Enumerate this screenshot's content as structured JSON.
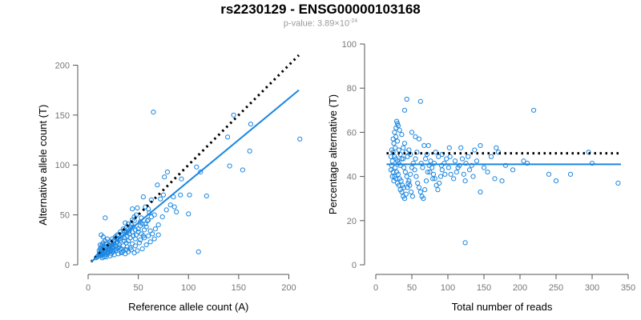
{
  "title": "rs2230129 - ENSG00000103168",
  "subtitle": {
    "prefix": "p-value: 3.89×10",
    "exponent": "-24"
  },
  "colors": {
    "points": "#1a86e0",
    "fit": "#1a86e0",
    "reference": "#000000",
    "axis": "#555555"
  },
  "chart_data": [
    {
      "type": "scatter",
      "xlabel": "Reference allele count (A)",
      "ylabel": "Alternative allele count (T)",
      "xlim": [
        0,
        210
      ],
      "ylim": [
        0,
        210
      ],
      "xticks": [
        0,
        50,
        100,
        150,
        200
      ],
      "yticks": [
        0,
        50,
        100,
        150,
        200
      ],
      "grid": false,
      "fit_line": {
        "x": [
          3,
          210
        ],
        "y": [
          3,
          175
        ]
      },
      "reference_line": {
        "x": [
          3,
          210
        ],
        "y": [
          3,
          210
        ]
      },
      "points": [
        [
          65,
          153
        ],
        [
          145,
          150
        ],
        [
          162,
          141
        ],
        [
          139,
          128
        ],
        [
          211,
          126
        ],
        [
          161,
          114
        ],
        [
          154,
          95
        ],
        [
          141,
          99
        ],
        [
          79,
          93
        ],
        [
          112,
          93
        ],
        [
          93,
          86
        ],
        [
          108,
          98
        ],
        [
          76,
          88
        ],
        [
          69,
          80
        ],
        [
          72,
          66
        ],
        [
          75,
          70
        ],
        [
          85,
          68
        ],
        [
          101,
          70
        ],
        [
          118,
          69
        ],
        [
          92,
          70
        ],
        [
          55,
          68
        ],
        [
          63,
          65
        ],
        [
          100,
          51
        ],
        [
          88,
          53
        ],
        [
          57,
          58
        ],
        [
          60,
          56
        ],
        [
          49,
          57
        ],
        [
          44,
          56
        ],
        [
          110,
          13
        ],
        [
          53,
          47
        ],
        [
          48,
          50
        ],
        [
          52,
          43
        ],
        [
          46,
          44
        ],
        [
          43,
          40
        ],
        [
          40,
          41
        ],
        [
          37,
          42
        ],
        [
          60,
          45
        ],
        [
          58,
          38
        ],
        [
          50,
          36
        ],
        [
          56,
          35
        ],
        [
          62,
          34
        ],
        [
          45,
          38
        ],
        [
          41,
          34
        ],
        [
          48,
          30
        ],
        [
          35,
          36
        ],
        [
          32,
          33
        ],
        [
          29,
          30
        ],
        [
          27,
          28
        ],
        [
          34,
          29
        ],
        [
          38,
          32
        ],
        [
          30,
          25
        ],
        [
          25,
          24
        ],
        [
          23,
          22
        ],
        [
          21,
          20
        ],
        [
          28,
          22
        ],
        [
          31,
          20
        ],
        [
          36,
          24
        ],
        [
          42,
          27
        ],
        [
          47,
          26
        ],
        [
          52,
          25
        ],
        [
          44,
          21
        ],
        [
          39,
          18
        ],
        [
          33,
          16
        ],
        [
          26,
          15
        ],
        [
          22,
          14
        ],
        [
          19,
          13
        ],
        [
          17,
          12
        ],
        [
          15,
          11
        ],
        [
          14,
          10
        ],
        [
          13,
          9
        ],
        [
          16,
          8
        ],
        [
          18,
          10
        ],
        [
          20,
          12
        ],
        [
          24,
          17
        ],
        [
          27,
          19
        ],
        [
          22,
          18
        ],
        [
          18,
          17
        ],
        [
          16,
          19
        ],
        [
          14,
          16
        ],
        [
          13,
          18
        ],
        [
          12,
          20
        ],
        [
          15,
          22
        ],
        [
          17,
          24
        ],
        [
          19,
          26
        ],
        [
          13,
          30
        ],
        [
          15,
          28
        ],
        [
          17,
          47
        ],
        [
          14,
          14
        ],
        [
          16,
          13
        ],
        [
          20,
          15
        ],
        [
          23,
          11
        ],
        [
          25,
          13
        ],
        [
          28,
          14
        ],
        [
          30,
          17
        ],
        [
          33,
          12
        ],
        [
          35,
          14
        ],
        [
          37,
          11
        ],
        [
          40,
          13
        ],
        [
          43,
          15
        ],
        [
          46,
          12
        ],
        [
          49,
          14
        ],
        [
          54,
          16
        ],
        [
          58,
          20
        ],
        [
          62,
          23
        ],
        [
          66,
          26
        ],
        [
          70,
          30
        ],
        [
          64,
          31
        ],
        [
          60,
          29
        ],
        [
          56,
          27
        ],
        [
          51,
          22
        ],
        [
          47,
          19
        ],
        [
          42,
          17
        ],
        [
          38,
          15
        ],
        [
          34,
          13
        ],
        [
          30,
          11
        ],
        [
          26,
          10
        ],
        [
          22,
          9
        ],
        [
          18,
          8
        ],
        [
          14,
          7
        ],
        [
          12,
          12
        ],
        [
          11,
          14
        ],
        [
          13,
          15
        ],
        [
          21,
          16
        ],
        [
          24,
          20
        ],
        [
          26,
          21
        ],
        [
          29,
          23
        ],
        [
          32,
          24
        ],
        [
          36,
          27
        ],
        [
          39,
          29
        ],
        [
          41,
          31
        ],
        [
          44,
          33
        ],
        [
          47,
          35
        ],
        [
          50,
          33
        ],
        [
          53,
          31
        ],
        [
          55,
          29
        ],
        [
          52,
          39
        ],
        [
          54,
          41
        ],
        [
          67,
          36
        ],
        [
          70,
          40
        ],
        [
          74,
          48
        ],
        [
          78,
          55
        ],
        [
          82,
          60
        ],
        [
          86,
          58
        ],
        [
          66,
          50
        ],
        [
          63,
          48
        ],
        [
          61,
          52
        ],
        [
          59,
          44
        ],
        [
          57,
          41
        ],
        [
          45,
          29
        ],
        [
          40,
          24
        ],
        [
          38,
          22
        ],
        [
          35,
          19
        ],
        [
          31,
          18
        ],
        [
          28,
          16
        ],
        [
          25,
          18
        ],
        [
          23,
          15
        ],
        [
          21,
          13
        ],
        [
          19,
          11
        ],
        [
          17,
          14
        ],
        [
          15,
          15
        ],
        [
          13,
          12
        ],
        [
          12,
          10
        ],
        [
          11,
          11
        ],
        [
          10,
          9
        ],
        [
          9,
          8
        ],
        [
          8,
          7
        ],
        [
          12,
          16
        ],
        [
          14,
          20
        ],
        [
          16,
          17
        ],
        [
          18,
          21
        ],
        [
          20,
          19
        ],
        [
          22,
          23
        ],
        [
          24,
          26
        ],
        [
          26,
          24
        ],
        [
          28,
          27
        ],
        [
          30,
          29
        ],
        [
          32,
          26
        ],
        [
          34,
          31
        ],
        [
          36,
          34
        ],
        [
          38,
          37
        ],
        [
          40,
          36
        ],
        [
          42,
          38
        ],
        [
          44,
          45
        ],
        [
          46,
          48
        ]
      ]
    },
    {
      "type": "scatter",
      "xlabel": "Total number of reads",
      "ylabel": "Percentage alternative (T)",
      "xlim": [
        0,
        350
      ],
      "ylim": [
        0,
        100
      ],
      "xticks": [
        0,
        50,
        100,
        150,
        200,
        250,
        300,
        350
      ],
      "yticks": [
        0,
        20,
        40,
        60,
        80,
        100
      ],
      "grid": false,
      "fit_line": {
        "x": [
          15,
          340
        ],
        "y": [
          45.5,
          45.5
        ]
      },
      "reference_line": {
        "x": [
          15,
          340
        ],
        "y": [
          50.5,
          50.5
        ]
      },
      "points": [
        [
          43,
          75
        ],
        [
          62,
          74
        ],
        [
          40,
          70
        ],
        [
          219,
          70
        ],
        [
          29,
          65
        ],
        [
          31,
          63
        ],
        [
          33,
          61
        ],
        [
          36,
          59
        ],
        [
          28,
          58
        ],
        [
          30,
          56
        ],
        [
          50,
          60
        ],
        [
          55,
          58
        ],
        [
          60,
          57
        ],
        [
          67,
          54
        ],
        [
          73,
          54
        ],
        [
          102,
          53
        ],
        [
          118,
          53
        ],
        [
          137,
          52
        ],
        [
          145,
          54
        ],
        [
          167,
          53
        ],
        [
          170,
          51
        ],
        [
          83,
          51
        ],
        [
          92,
          50
        ],
        [
          295,
          51
        ],
        [
          25,
          55
        ],
        [
          27,
          53
        ],
        [
          24,
          51
        ],
        [
          26,
          49
        ],
        [
          28,
          48
        ],
        [
          30,
          47
        ],
        [
          32,
          46
        ],
        [
          34,
          45
        ],
        [
          23,
          47
        ],
        [
          22,
          45
        ],
        [
          21,
          43
        ],
        [
          24,
          42
        ],
        [
          26,
          40
        ],
        [
          28,
          39
        ],
        [
          30,
          37
        ],
        [
          32,
          36
        ],
        [
          34,
          34
        ],
        [
          36,
          33
        ],
        [
          38,
          31
        ],
        [
          40,
          30
        ],
        [
          42,
          32
        ],
        [
          44,
          35
        ],
        [
          46,
          38
        ],
        [
          48,
          41
        ],
        [
          50,
          44
        ],
        [
          52,
          46
        ],
        [
          54,
          43
        ],
        [
          56,
          40
        ],
        [
          58,
          37
        ],
        [
          60,
          35
        ],
        [
          62,
          33
        ],
        [
          64,
          31
        ],
        [
          66,
          30
        ],
        [
          68,
          34
        ],
        [
          70,
          38
        ],
        [
          72,
          42
        ],
        [
          74,
          45
        ],
        [
          76,
          47
        ],
        [
          78,
          44
        ],
        [
          80,
          41
        ],
        [
          82,
          39
        ],
        [
          84,
          36
        ],
        [
          86,
          34
        ],
        [
          88,
          37
        ],
        [
          90,
          40
        ],
        [
          92,
          43
        ],
        [
          95,
          46
        ],
        [
          98,
          48
        ],
        [
          101,
          44
        ],
        [
          104,
          41
        ],
        [
          108,
          39
        ],
        [
          112,
          42
        ],
        [
          116,
          45
        ],
        [
          120,
          48
        ],
        [
          125,
          46
        ],
        [
          130,
          43
        ],
        [
          135,
          40
        ],
        [
          140,
          47
        ],
        [
          150,
          44
        ],
        [
          155,
          42
        ],
        [
          160,
          49
        ],
        [
          165,
          39
        ],
        [
          175,
          38
        ],
        [
          180,
          45
        ],
        [
          190,
          43
        ],
        [
          205,
          47
        ],
        [
          210,
          46
        ],
        [
          240,
          41
        ],
        [
          250,
          38
        ],
        [
          270,
          41
        ],
        [
          300,
          46
        ],
        [
          336,
          37
        ],
        [
          124,
          10
        ],
        [
          124,
          38
        ],
        [
          145,
          33
        ],
        [
          38,
          48
        ],
        [
          39,
          44
        ],
        [
          41,
          42
        ],
        [
          43,
          40
        ],
        [
          45,
          37
        ],
        [
          47,
          36
        ],
        [
          49,
          33
        ],
        [
          51,
          31
        ],
        [
          27,
          44
        ],
        [
          29,
          42
        ],
        [
          31,
          41
        ],
        [
          33,
          39
        ],
        [
          35,
          38
        ],
        [
          37,
          36
        ],
        [
          39,
          35
        ],
        [
          25,
          38
        ],
        [
          23,
          40
        ],
        [
          21,
          49
        ],
        [
          22,
          52
        ],
        [
          24,
          57
        ],
        [
          26,
          60
        ],
        [
          28,
          62
        ],
        [
          30,
          64
        ],
        [
          32,
          52
        ],
        [
          34,
          50
        ],
        [
          36,
          48
        ],
        [
          38,
          53
        ],
        [
          40,
          55
        ],
        [
          42,
          51
        ],
        [
          44,
          49
        ],
        [
          46,
          52
        ],
        [
          48,
          50
        ],
        [
          55,
          48
        ],
        [
          57,
          51
        ],
        [
          63,
          46
        ],
        [
          65,
          44
        ],
        [
          69,
          48
        ],
        [
          71,
          50
        ],
        [
          75,
          42
        ],
        [
          79,
          39
        ],
        [
          81,
          46
        ],
        [
          87,
          49
        ],
        [
          91,
          45
        ],
        [
          96,
          41
        ],
        [
          103,
          49
        ],
        [
          110,
          47
        ],
        [
          114,
          44
        ],
        [
          122,
          41
        ],
        [
          128,
          49
        ],
        [
          133,
          45
        ]
      ]
    }
  ]
}
